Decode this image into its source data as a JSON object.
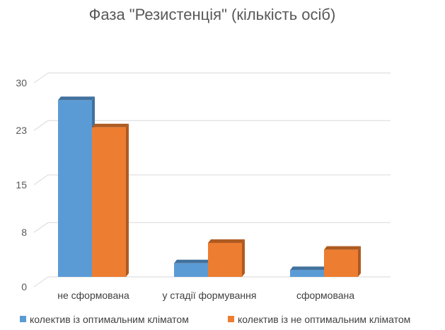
{
  "chart_data": {
    "type": "bar",
    "title": "Фаза \"Резистенція\" (кількість осіб)",
    "categories": [
      "не сформована",
      "у стадії формування",
      "сформована"
    ],
    "series": [
      {
        "name": "колектив із оптимальним кліматом",
        "values": [
          26,
          2,
          1
        ],
        "color": "#5B9BD5",
        "top_color": "#41719C"
      },
      {
        "name": "колектив із не оптимальним кліматом",
        "values": [
          22,
          5,
          4
        ],
        "color": "#ED7D31",
        "top_color": "#AE5A21"
      }
    ],
    "y_ticks": [
      "0",
      "8",
      "15",
      "23",
      "30"
    ],
    "ylim": [
      0,
      30
    ],
    "grid": true,
    "three_d": true,
    "legend_position": "bottom"
  }
}
